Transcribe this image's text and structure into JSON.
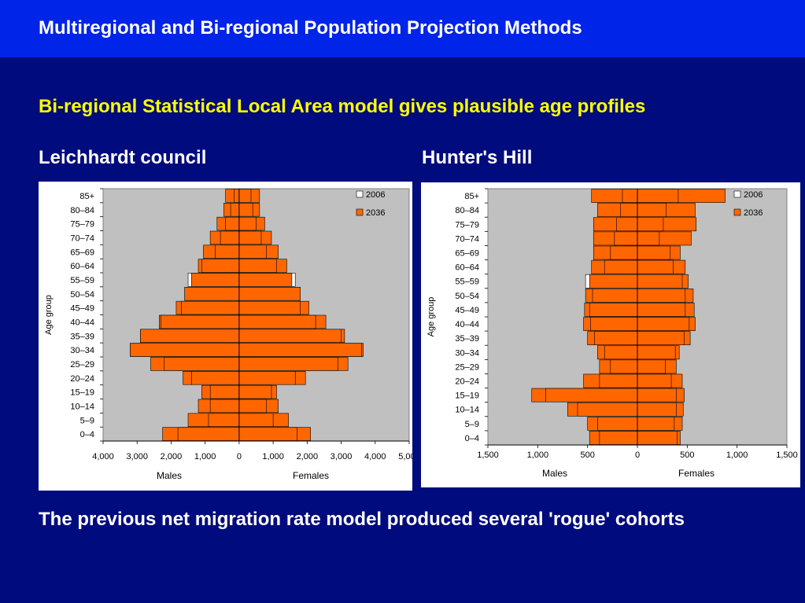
{
  "slide": {
    "title": "Multiregional and Bi-regional Population Projection Methods",
    "subtitle": "Bi-regional Statistical Local Area model gives plausible age profiles",
    "footer": "The previous net migration rate model produced several 'rogue' cohorts",
    "colors": {
      "background": "#000b7d",
      "title_bar": "#0024e8",
      "subtitle": "#ffff00",
      "plot_area": "#c0c0c0",
      "bar_2036": "#ff6600",
      "bar_2006": "#ffffff"
    }
  },
  "chart_data": [
    {
      "type": "bar",
      "orientation": "horizontal-pyramid",
      "heading": "Leichhardt council",
      "ylabel": "Age group",
      "xlabel_left": "Males",
      "xlabel_right": "Females",
      "xlim": [
        -4000,
        5000
      ],
      "x_ticks": [
        -4000,
        -3000,
        -2000,
        -1000,
        0,
        1000,
        2000,
        3000,
        4000,
        5000
      ],
      "x_tick_labels": [
        "4,000",
        "3,000",
        "2,000",
        "1,000",
        "0",
        "1,000",
        "2,000",
        "3,000",
        "4,000",
        "5,000"
      ],
      "categories": [
        "0–4",
        "5–9",
        "10–14",
        "15–19",
        "20–24",
        "25–29",
        "30–34",
        "35–39",
        "40–44",
        "45–49",
        "50–54",
        "55–59",
        "60–64",
        "65–69",
        "70–74",
        "75–79",
        "80–84",
        "85+"
      ],
      "legend": [
        "2006",
        "2036"
      ],
      "legend_position": "top-right",
      "series": [
        {
          "name": "2006",
          "color": "#ffffff",
          "males": [
            1800,
            900,
            850,
            850,
            1400,
            2200,
            3200,
            2900,
            2300,
            1700,
            1600,
            1500,
            1100,
            700,
            550,
            400,
            250,
            150
          ],
          "females": [
            1700,
            1000,
            800,
            950,
            1650,
            2900,
            3600,
            3000,
            2250,
            1800,
            1800,
            1650,
            1100,
            800,
            650,
            500,
            400,
            350
          ]
        },
        {
          "name": "2036",
          "color": "#ff6600",
          "males": [
            2250,
            1500,
            1200,
            1100,
            1650,
            2600,
            3200,
            2900,
            2350,
            1850,
            1600,
            1400,
            1200,
            1050,
            850,
            650,
            450,
            400
          ],
          "females": [
            2100,
            1450,
            1150,
            1100,
            1950,
            3200,
            3650,
            3100,
            2550,
            2050,
            1800,
            1550,
            1400,
            1150,
            950,
            750,
            600,
            600
          ]
        }
      ]
    },
    {
      "type": "bar",
      "orientation": "horizontal-pyramid",
      "heading": "Hunter's Hill",
      "ylabel": "Age group",
      "xlabel_left": "Males",
      "xlabel_right": "Females",
      "xlim": [
        -1500,
        1500
      ],
      "x_ticks": [
        -1500,
        -1000,
        -500,
        0,
        500,
        1000,
        1500
      ],
      "x_tick_labels": [
        "1,500",
        "1,000",
        "500",
        "0",
        "500",
        "1,000",
        "1,500"
      ],
      "categories": [
        "0–4",
        "5–9",
        "10–14",
        "15–19",
        "20–24",
        "25–29",
        "30–34",
        "35–39",
        "40–44",
        "45–49",
        "50–54",
        "55–59",
        "60–64",
        "65–69",
        "70–74",
        "75–79",
        "80–84",
        "85+"
      ],
      "legend": [
        "2006",
        "2036"
      ],
      "legend_position": "top-right",
      "series": [
        {
          "name": "2006",
          "color": "#ffffff",
          "males": [
            380,
            400,
            600,
            920,
            380,
            270,
            330,
            430,
            470,
            480,
            450,
            520,
            330,
            270,
            230,
            210,
            170,
            150
          ],
          "females": [
            400,
            370,
            390,
            390,
            340,
            280,
            380,
            470,
            520,
            480,
            480,
            450,
            360,
            330,
            220,
            260,
            290,
            410
          ]
        },
        {
          "name": "2036",
          "color": "#ff6600",
          "males": [
            480,
            500,
            700,
            1060,
            540,
            380,
            400,
            500,
            540,
            530,
            520,
            480,
            460,
            440,
            440,
            440,
            400,
            460
          ],
          "females": [
            430,
            450,
            460,
            470,
            450,
            390,
            420,
            530,
            580,
            570,
            560,
            510,
            480,
            430,
            540,
            590,
            580,
            880
          ]
        }
      ]
    }
  ]
}
